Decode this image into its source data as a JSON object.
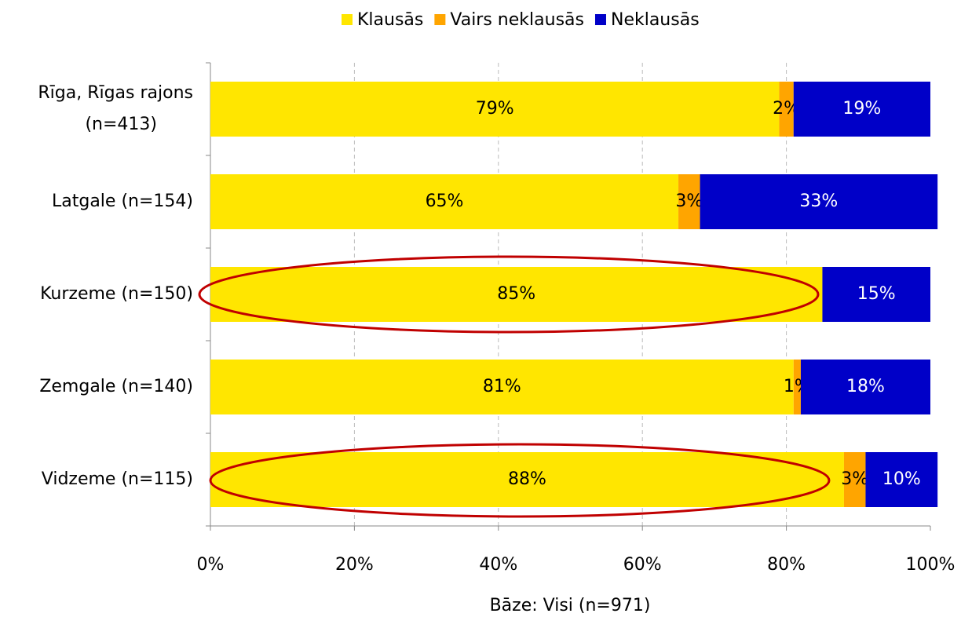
{
  "chart_data": {
    "type": "stacked_barh",
    "categories": [
      "Rīga, Rīgas rajons (n=413)",
      "Latgale (n=154)",
      "Kurzeme (n=150)",
      "Zemgale (n=140)",
      "Vidzeme (n=115)"
    ],
    "series": [
      {
        "name": "Klausās",
        "color": "#ffe600",
        "values": [
          79,
          65,
          85,
          81,
          88
        ],
        "value_labels": [
          "79%",
          "65%",
          "85%",
          "81%",
          "88%"
        ]
      },
      {
        "name": "Vairs neklausās",
        "color": "#ffa500",
        "values": [
          2,
          3,
          0,
          1,
          3
        ],
        "value_labels": [
          "2%",
          "3%",
          null,
          "1%",
          "3%"
        ]
      },
      {
        "name": "Neklausās",
        "color": "#0000c8",
        "values": [
          19,
          33,
          15,
          18,
          10
        ],
        "value_labels": [
          "19%",
          "33%",
          "15%",
          "18%",
          "10%"
        ]
      }
    ],
    "xlim": [
      0,
      100
    ],
    "xticks": [
      {
        "value": 0,
        "label": "0%"
      },
      {
        "value": 20,
        "label": "20%"
      },
      {
        "value": 40,
        "label": "40%"
      },
      {
        "value": 60,
        "label": "60%"
      },
      {
        "value": 80,
        "label": "80%"
      },
      {
        "value": 100,
        "label": "100%"
      }
    ],
    "xlabel": "Bāze: Visi (n=971)",
    "grid": true,
    "legend": "top"
  }
}
